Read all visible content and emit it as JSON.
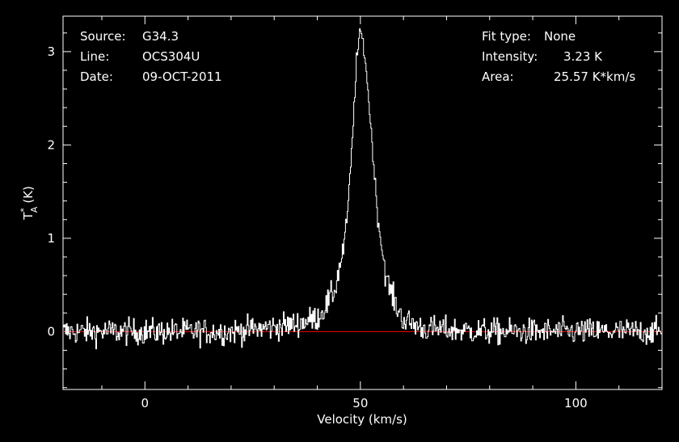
{
  "chart_data": {
    "type": "line",
    "xlabel": "Velocity (km/s)",
    "ylabel_main": "T",
    "ylabel_sup": "*",
    "ylabel_sub": "A",
    "ylabel_unit": "(K)",
    "xlim": [
      -19,
      120
    ],
    "ylim": [
      -0.62,
      3.38
    ],
    "xticks": [
      0,
      50,
      100
    ],
    "yticks": [
      0,
      1,
      2,
      3
    ],
    "grid": false,
    "baseline": 0,
    "peak_velocity": 50,
    "peak_intensity": 3.23,
    "fit_line_color": "#ff0000",
    "line_color": "#ffffff",
    "spectrum_samples": [
      [
        -19,
        0.0
      ],
      [
        0,
        0.0
      ],
      [
        20,
        0.0
      ],
      [
        30,
        0.05
      ],
      [
        35,
        0.08
      ],
      [
        40,
        0.15
      ],
      [
        42,
        0.28
      ],
      [
        44,
        0.45
      ],
      [
        46,
        0.9
      ],
      [
        47,
        1.3
      ],
      [
        48,
        2.0
      ],
      [
        49,
        2.9
      ],
      [
        50,
        3.23
      ],
      [
        51,
        2.95
      ],
      [
        52,
        2.4
      ],
      [
        53,
        1.8
      ],
      [
        54,
        1.2
      ],
      [
        56,
        0.55
      ],
      [
        58,
        0.3
      ],
      [
        60,
        0.12
      ],
      [
        65,
        0.03
      ],
      [
        80,
        0.0
      ],
      [
        120,
        0.0
      ]
    ],
    "noise_rms": 0.1
  },
  "header": {
    "source_label": "Source:",
    "source_value": "G34.3",
    "line_label": "Line:",
    "line_value": "OCS304U",
    "date_label": "Date:",
    "date_value": "09-OCT-2011",
    "fit_label": "Fit type:",
    "fit_value": "None",
    "intensity_label": "Intensity:",
    "intensity_value": "3.23 K",
    "area_label": "Area:",
    "area_value": "25.57 K*km/s"
  }
}
